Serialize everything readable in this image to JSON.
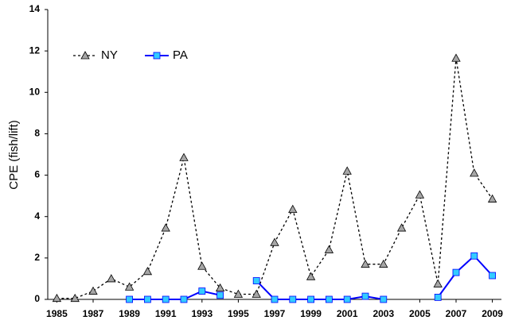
{
  "chart_data": {
    "type": "line",
    "y_label": "CPE (fish/lift)",
    "x": [
      1985,
      1986,
      1987,
      1988,
      1989,
      1990,
      1991,
      1992,
      1993,
      1994,
      1995,
      1996,
      1997,
      1998,
      1999,
      2000,
      2001,
      2002,
      2003,
      2004,
      2005,
      2006,
      2007,
      2008,
      2009
    ],
    "series": [
      {
        "name": "NY",
        "color": "#000000",
        "line_style": "dotted",
        "marker": "triangle",
        "marker_color": "#a6a6a6",
        "values": [
          0.05,
          0.05,
          0.4,
          1.0,
          0.6,
          1.35,
          3.45,
          6.85,
          1.6,
          0.55,
          0.25,
          0.25,
          2.75,
          4.35,
          1.1,
          2.4,
          6.2,
          1.7,
          1.7,
          3.45,
          5.05,
          0.75,
          11.65,
          6.1,
          4.85
        ]
      },
      {
        "name": "PA",
        "color": "#0000ff",
        "line_style": "solid",
        "marker": "square",
        "marker_color": "#33ccff",
        "values": [
          null,
          null,
          null,
          null,
          0,
          0,
          0,
          0,
          0.4,
          0.2,
          null,
          0.9,
          0,
          0,
          0,
          0,
          0,
          0.15,
          0,
          null,
          null,
          0.1,
          1.3,
          2.1,
          1.15
        ]
      }
    ],
    "xlim": [
      1984.5,
      2009.5
    ],
    "xticks": [
      1985,
      1987,
      1989,
      1991,
      1993,
      1995,
      1997,
      1999,
      2001,
      2003,
      2005,
      2007,
      2009
    ],
    "ylim": [
      0,
      14
    ],
    "yticks": [
      0,
      2,
      4,
      6,
      8,
      10,
      12,
      14
    ],
    "grid": false,
    "legend": "upper-left"
  }
}
